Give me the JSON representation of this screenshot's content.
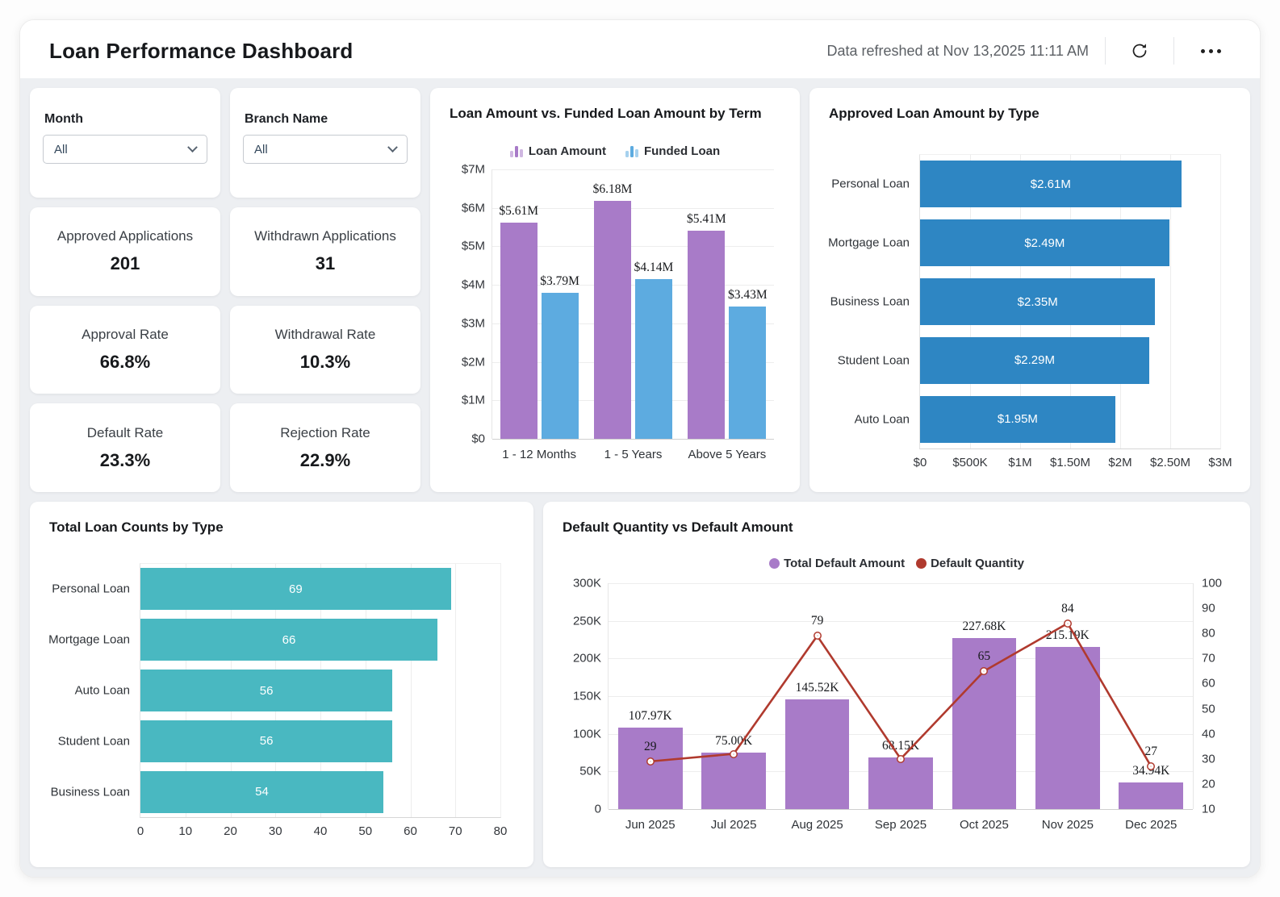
{
  "header": {
    "title": "Loan Performance Dashboard",
    "refreshed_text": "Data refreshed at Nov 13,2025 11:11 AM"
  },
  "filters": [
    {
      "label": "Month",
      "value": "All"
    },
    {
      "label": "Branch Name",
      "value": "All"
    }
  ],
  "kpis": [
    {
      "label": "Approved Applications",
      "value": "201"
    },
    {
      "label": "Withdrawn Applications",
      "value": "31"
    },
    {
      "label": "Approval Rate",
      "value": "66.8%"
    },
    {
      "label": "Withdrawal Rate",
      "value": "10.3%"
    },
    {
      "label": "Default Rate",
      "value": "23.3%"
    },
    {
      "label": "Rejection Rate",
      "value": "22.9%"
    }
  ],
  "colors": {
    "purple": "#a87bc8",
    "sky_blue": "#5dabe0",
    "blue": "#2e86c3",
    "teal": "#49b8c1",
    "red": "#b03a2e",
    "content_bg": "#edeff2"
  },
  "chart_data": [
    {
      "id": "loan-vs-funded",
      "type": "bar",
      "title": "Loan Amount vs. Funded Loan Amount by Term",
      "categories": [
        "1 - 12 Months",
        "1 - 5 Years",
        "Above 5 Years"
      ],
      "series": [
        {
          "name": "Loan Amount",
          "color": "#a87bc8",
          "values": [
            5.61,
            6.18,
            5.41
          ],
          "labels": [
            "$5.61M",
            "$6.18M",
            "$5.41M"
          ]
        },
        {
          "name": "Funded Loan",
          "color": "#5dabe0",
          "values": [
            3.79,
            4.14,
            3.43
          ],
          "labels": [
            "$3.79M",
            "$4.14M",
            "$3.43M"
          ]
        }
      ],
      "ylim": [
        0,
        7
      ],
      "yticks": [
        "$7M",
        "$6M",
        "$5M",
        "$4M",
        "$3M",
        "$2M",
        "$1M",
        "$0"
      ],
      "grid": true,
      "legend_position": "top"
    },
    {
      "id": "approved-by-type",
      "type": "bar",
      "orientation": "horizontal",
      "title": "Approved Loan Amount by Type",
      "categories": [
        "Personal Loan",
        "Mortgage Loan",
        "Business Loan",
        "Student Loan",
        "Auto Loan"
      ],
      "values": [
        2.61,
        2.49,
        2.35,
        2.29,
        1.95
      ],
      "labels": [
        "$2.61M",
        "$2.49M",
        "$2.35M",
        "$2.29M",
        "$1.95M"
      ],
      "xlim": [
        0,
        3
      ],
      "xticks": [
        "$0",
        "$500K",
        "$1M",
        "$1.50M",
        "$2M",
        "$2.50M",
        "$3M"
      ],
      "color": "#2e86c3",
      "grid": true
    },
    {
      "id": "loan-counts-by-type",
      "type": "bar",
      "orientation": "horizontal",
      "title": "Total Loan Counts by Type",
      "categories": [
        "Personal Loan",
        "Mortgage Loan",
        "Auto Loan",
        "Student Loan",
        "Business Loan"
      ],
      "values": [
        69,
        66,
        56,
        56,
        54
      ],
      "labels": [
        "69",
        "66",
        "56",
        "56",
        "54"
      ],
      "xlim": [
        0,
        80
      ],
      "xticks": [
        "0",
        "10",
        "20",
        "30",
        "40",
        "50",
        "60",
        "70",
        "80"
      ],
      "color": "#49b8c1",
      "grid": true
    },
    {
      "id": "default-combo",
      "type": "bar",
      "subtype": "combo-bar-line",
      "title": "Default Quantity vs Default Amount",
      "categories": [
        "Jun 2025",
        "Jul 2025",
        "Aug 2025",
        "Sep 2025",
        "Oct 2025",
        "Nov 2025",
        "Dec 2025"
      ],
      "bar_series": {
        "name": "Total Default Amount",
        "color": "#a87bc8",
        "values": [
          107970,
          75000,
          145520,
          68150,
          227680,
          215190,
          34940
        ],
        "labels": [
          "107.97K",
          "75.00K",
          "145.52K",
          "68.15K",
          "227.68K",
          "215.19K",
          "34.94K"
        ]
      },
      "line_series": {
        "name": "Default Quantity",
        "color": "#b03a2e",
        "values": [
          29,
          32,
          79,
          30,
          65,
          84,
          27
        ],
        "labels": [
          "29",
          "",
          "79",
          "",
          "65",
          "84",
          "27"
        ]
      },
      "y_left": {
        "lim": [
          0,
          300000
        ],
        "ticks": [
          "300K",
          "250K",
          "200K",
          "150K",
          "100K",
          "50K",
          "0"
        ]
      },
      "y_right": {
        "lim": [
          10,
          100
        ],
        "ticks": [
          "100",
          "90",
          "80",
          "70",
          "60",
          "50",
          "40",
          "30",
          "20",
          "10"
        ]
      },
      "grid": true,
      "legend_position": "top"
    }
  ]
}
